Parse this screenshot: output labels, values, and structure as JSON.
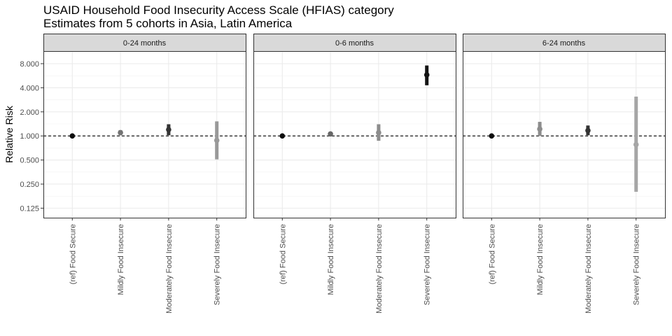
{
  "chart_data": {
    "type": "scatter",
    "title_lines": [
      "USAID Household Food Insecurity Access Scale (HFIAS) category",
      "Estimates from 5 cohorts in Asia, Latin America"
    ],
    "ylabel": "Relative Risk",
    "y_scale": "log2",
    "ylim": [
      0.095,
      11.5
    ],
    "y_ticks": [
      0.125,
      0.25,
      0.5,
      1,
      2,
      4,
      8
    ],
    "y_tick_labels": [
      "0.125",
      "0.250",
      "0.500",
      "1.000",
      "2.000",
      "4.000",
      "8.000"
    ],
    "reference_line": 1,
    "categories": [
      "(ref) Food Secure",
      "Mildly Food Insecure",
      "Moderately Food Insecure",
      "Severely Food Insecure"
    ],
    "grid": true,
    "panels": [
      {
        "label": "0-24 months",
        "points": [
          {
            "category": "(ref) Food Secure",
            "rr": 1.0,
            "ci_low": 1.0,
            "ci_high": 1.0,
            "shade": 0.95
          },
          {
            "category": "Mildly Food Insecure",
            "rr": 1.1,
            "ci_low": 1.02,
            "ci_high": 1.18,
            "shade": 0.55
          },
          {
            "category": "Moderately Food Insecure",
            "rr": 1.2,
            "ci_low": 1.02,
            "ci_high": 1.4,
            "shade": 0.8
          },
          {
            "category": "Severely Food Insecure",
            "rr": 0.88,
            "ci_low": 0.51,
            "ci_high": 1.52,
            "shade": 0.4
          }
        ]
      },
      {
        "label": "0-6 months",
        "points": [
          {
            "category": "(ref) Food Secure",
            "rr": 1.0,
            "ci_low": 1.0,
            "ci_high": 1.0,
            "shade": 0.95
          },
          {
            "category": "Mildly Food Insecure",
            "rr": 1.06,
            "ci_low": 1.0,
            "ci_high": 1.12,
            "shade": 0.6
          },
          {
            "category": "Moderately Food Insecure",
            "rr": 1.1,
            "ci_low": 0.87,
            "ci_high": 1.4,
            "shade": 0.45
          },
          {
            "category": "Severely Food Insecure",
            "rr": 5.8,
            "ci_low": 4.3,
            "ci_high": 7.6,
            "shade": 0.92
          }
        ]
      },
      {
        "label": "6-24 months",
        "points": [
          {
            "category": "(ref) Food Secure",
            "rr": 1.0,
            "ci_low": 1.0,
            "ci_high": 1.0,
            "shade": 0.95
          },
          {
            "category": "Mildly Food Insecure",
            "rr": 1.22,
            "ci_low": 1.0,
            "ci_high": 1.5,
            "shade": 0.45
          },
          {
            "category": "Moderately Food Insecure",
            "rr": 1.17,
            "ci_low": 1.02,
            "ci_high": 1.35,
            "shade": 0.8
          },
          {
            "category": "Severely Food Insecure",
            "rr": 0.78,
            "ci_low": 0.2,
            "ci_high": 3.1,
            "shade": 0.35
          }
        ]
      }
    ]
  }
}
